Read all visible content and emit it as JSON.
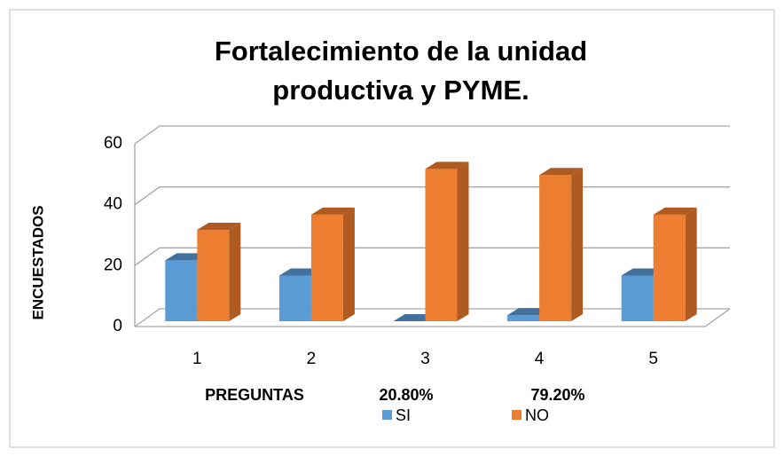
{
  "chart_data": {
    "type": "bar3d",
    "title": [
      "Fortalecimiento de la unidad",
      "productiva y PYME."
    ],
    "y_label": "ENCUESTADOS",
    "x_label": "PREGUNTAS",
    "annotations": [
      "20.80%",
      "79.20%"
    ],
    "categories": [
      "1",
      "2",
      "3",
      "4",
      "5"
    ],
    "series": [
      {
        "name": "SI",
        "color": "#5b9bd5",
        "side": "#41719c",
        "values": [
          20,
          15,
          0,
          2,
          15
        ]
      },
      {
        "name": "NO",
        "color": "#ed7d31",
        "side": "#ae5a21",
        "values": [
          30,
          35,
          50,
          48,
          35
        ]
      }
    ],
    "ylim": [
      0,
      60
    ],
    "yticks": [
      0,
      20,
      40,
      60
    ],
    "grid": true
  }
}
